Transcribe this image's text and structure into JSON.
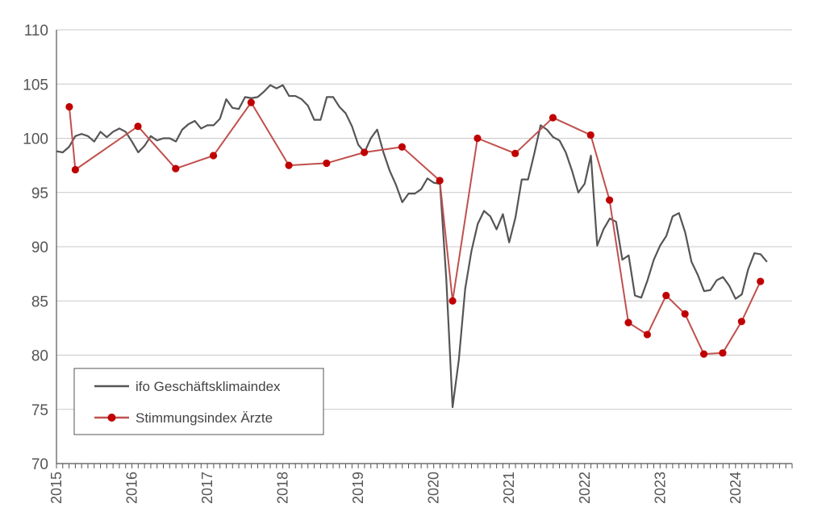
{
  "chart_data": {
    "type": "line",
    "title": "",
    "xlabel": "",
    "ylabel": "",
    "ylim": [
      70,
      110
    ],
    "yticks": [
      70,
      75,
      80,
      85,
      90,
      95,
      100,
      105,
      110
    ],
    "xlim": [
      2015,
      2024.75
    ],
    "xticks": [
      "2015",
      "2016",
      "2017",
      "2018",
      "2019",
      "2020",
      "2021",
      "2022",
      "2023",
      "2024"
    ],
    "grid": "horizontal",
    "legend": "bottom-left",
    "series": [
      {
        "name": "ifo Geschäftsklimaindex",
        "color": "#555555",
        "marker": "none",
        "start": 2015.0,
        "step_months": 1,
        "values": [
          98.8,
          98.7,
          99.2,
          100.2,
          100.4,
          100.2,
          99.7,
          100.6,
          100.1,
          100.6,
          100.9,
          100.6,
          99.7,
          98.7,
          99.3,
          100.2,
          99.8,
          100.0,
          100.0,
          99.7,
          100.8,
          101.3,
          101.6,
          100.9,
          101.2,
          101.2,
          101.8,
          103.6,
          102.8,
          102.7,
          103.8,
          103.7,
          103.8,
          104.3,
          104.9,
          104.6,
          104.9,
          103.9,
          103.9,
          103.6,
          103.0,
          101.7,
          101.7,
          103.8,
          103.8,
          102.9,
          102.3,
          101.1,
          99.4,
          98.7,
          100.0,
          100.8,
          98.7,
          97.0,
          95.7,
          94.1,
          94.9,
          94.9,
          95.3,
          96.3,
          95.9,
          95.8,
          87.0,
          75.2,
          79.6,
          86.1,
          89.6,
          92.1,
          93.3,
          92.8,
          91.6,
          93.0,
          90.4,
          92.7,
          96.2,
          96.2,
          98.6,
          101.2,
          100.8,
          100.1,
          99.8,
          98.7,
          97.0,
          95.0,
          95.8,
          98.4,
          90.1,
          91.6,
          92.6,
          92.3,
          88.8,
          89.2,
          85.5,
          85.3,
          86.9,
          88.8,
          90.1,
          91.0,
          92.8,
          93.1,
          91.3,
          88.6,
          87.4,
          85.9,
          86.0,
          86.9,
          87.2,
          86.4,
          85.2,
          85.6,
          87.9,
          89.4,
          89.3,
          88.6
        ]
      },
      {
        "name": "Stimmungsindex Ärzte",
        "color": "#c0504d",
        "marker": "circle",
        "x": [
          2015.17,
          2015.25,
          2016.08,
          2016.58,
          2017.08,
          2017.58,
          2018.08,
          2018.58,
          2019.08,
          2019.58,
          2020.08,
          2020.25,
          2020.58,
          2021.08,
          2021.58,
          2022.08,
          2022.33,
          2022.58,
          2022.83,
          2023.08,
          2023.33,
          2023.58,
          2023.83,
          2024.08,
          2024.33
        ],
        "values": [
          102.9,
          97.1,
          101.1,
          97.2,
          98.4,
          103.3,
          97.5,
          97.7,
          98.7,
          99.2,
          96.1,
          85.0,
          100.0,
          98.6,
          101.9,
          100.3,
          94.3,
          83.0,
          81.9,
          85.5,
          83.8,
          80.1,
          80.2,
          83.1,
          86.8
        ]
      }
    ]
  }
}
